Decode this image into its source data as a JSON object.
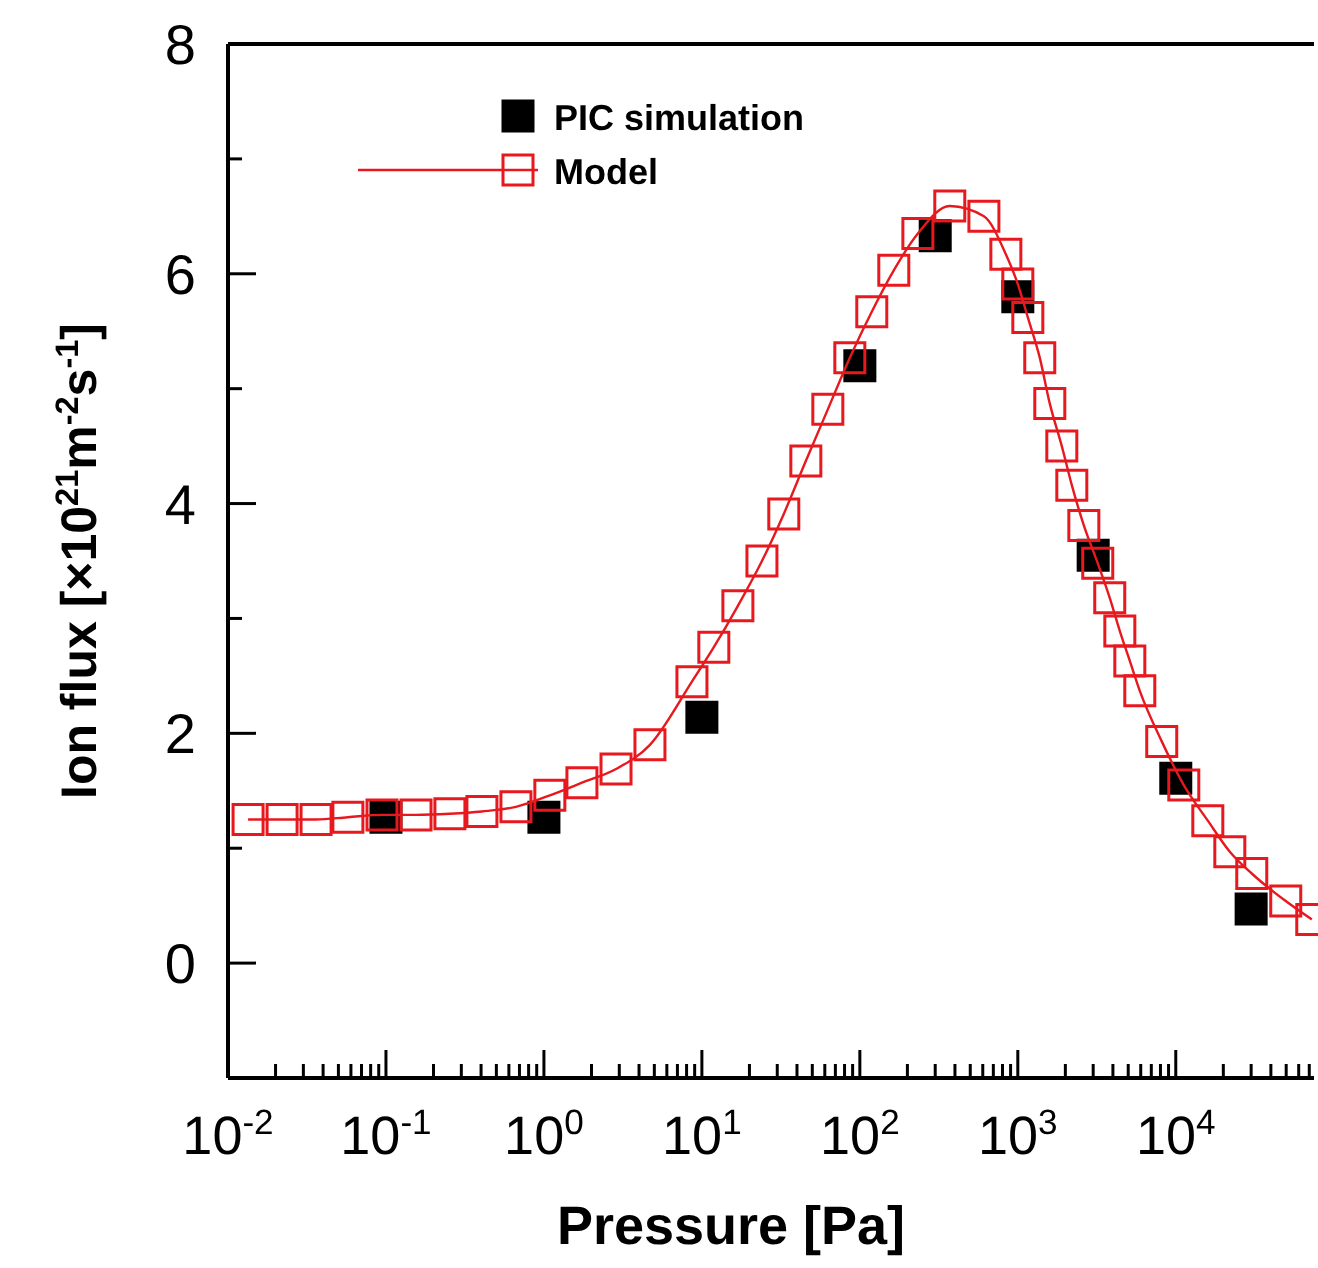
{
  "chart_data": {
    "type": "scatter",
    "xlabel": "Pressure [Pa]",
    "ylabel": "Ion flux [×10$^{21}$m$^{-2}$s$^{-1}$]",
    "log": "x",
    "xlim": [
      0.01,
      75000
    ],
    "ylim": [
      -1,
      8
    ],
    "xticks": [
      {
        "value": 0.01,
        "label": "10$^{-2}$"
      },
      {
        "value": 0.02,
        "label": null
      },
      {
        "value": 0.03,
        "label": null
      },
      {
        "value": 0.04,
        "label": null
      },
      {
        "value": 0.05,
        "label": null
      },
      {
        "value": 0.06,
        "label": null
      },
      {
        "value": 0.07,
        "label": null
      },
      {
        "value": 0.08,
        "label": null
      },
      {
        "value": 0.09,
        "label": null
      },
      {
        "value": 0.1,
        "label": "10$^{-1}$"
      },
      {
        "value": 0.2,
        "label": null
      },
      {
        "value": 0.3,
        "label": null
      },
      {
        "value": 0.4,
        "label": null
      },
      {
        "value": 0.5,
        "label": null
      },
      {
        "value": 0.6,
        "label": null
      },
      {
        "value": 0.7,
        "label": null
      },
      {
        "value": 0.8,
        "label": null
      },
      {
        "value": 0.9,
        "label": null
      },
      {
        "value": 1,
        "label": "10$^{0}$"
      },
      {
        "value": 2,
        "label": null
      },
      {
        "value": 3,
        "label": null
      },
      {
        "value": 4,
        "label": null
      },
      {
        "value": 5,
        "label": null
      },
      {
        "value": 6,
        "label": null
      },
      {
        "value": 7,
        "label": null
      },
      {
        "value": 8,
        "label": null
      },
      {
        "value": 9,
        "label": null
      },
      {
        "value": 10,
        "label": "10$^{1}$"
      },
      {
        "value": 20,
        "label": null
      },
      {
        "value": 30,
        "label": null
      },
      {
        "value": 40,
        "label": null
      },
      {
        "value": 50,
        "label": null
      },
      {
        "value": 60,
        "label": null
      },
      {
        "value": 70,
        "label": null
      },
      {
        "value": 80,
        "label": null
      },
      {
        "value": 90,
        "label": null
      },
      {
        "value": 100,
        "label": "10$^{2}$"
      },
      {
        "value": 200,
        "label": null
      },
      {
        "value": 300,
        "label": null
      },
      {
        "value": 400,
        "label": null
      },
      {
        "value": 500,
        "label": null
      },
      {
        "value": 600,
        "label": null
      },
      {
        "value": 700,
        "label": null
      },
      {
        "value": 800,
        "label": null
      },
      {
        "value": 900,
        "label": null
      },
      {
        "value": 1000,
        "label": "10$^{3}$"
      },
      {
        "value": 2000,
        "label": null
      },
      {
        "value": 3000,
        "label": null
      },
      {
        "value": 4000,
        "label": null
      },
      {
        "value": 5000,
        "label": null
      },
      {
        "value": 6000,
        "label": null
      },
      {
        "value": 7000,
        "label": null
      },
      {
        "value": 8000,
        "label": null
      },
      {
        "value": 9000,
        "label": null
      },
      {
        "value": 10000,
        "label": "10$^{4}$"
      },
      {
        "value": 20000,
        "label": null
      },
      {
        "value": 30000,
        "label": null
      },
      {
        "value": 40000,
        "label": null
      },
      {
        "value": 50000,
        "label": null
      },
      {
        "value": 60000,
        "label": null
      },
      {
        "value": 70000,
        "label": null
      }
    ],
    "yticks": [
      {
        "value": -1,
        "label": null
      },
      0,
      {
        "value": 1,
        "label": null
      },
      2,
      {
        "value": 3,
        "label": null
      },
      4,
      {
        "value": 5,
        "label": null
      },
      6,
      {
        "value": 7,
        "label": null
      },
      8
    ],
    "grid": false,
    "legend": "top left",
    "series": [
      {
        "name": "PIC simulation",
        "marker": "square",
        "color": "#000000",
        "x": [
          0.1,
          1,
          10,
          100,
          300,
          1000,
          3000,
          10000,
          30000
        ],
        "values": [
          1.27,
          1.27,
          2.14,
          5.2,
          6.33,
          5.8,
          3.55,
          1.61,
          0.47
        ]
      },
      {
        "name": "Model",
        "type": "line",
        "marker": "square",
        "line_style": "solid",
        "color": "#e8191e",
        "x": [
          0.0134,
          0.022,
          0.0361,
          0.0574,
          0.0944,
          0.155,
          0.254,
          0.405,
          0.665,
          1.09,
          1.74,
          2.86,
          4.69,
          8.65,
          11.9,
          16.9,
          24,
          33,
          45.5,
          62.7,
          86.4,
          119,
          164,
          233,
          371,
          610,
          840,
          1000,
          1157,
          1377,
          1594,
          1899,
          2197,
          2618,
          3207,
          3819,
          4424,
          5117,
          5918,
          8150,
          11240,
          15950,
          21980,
          30270,
          49670,
          72600
        ],
        "values": [
          1.25,
          1.25,
          1.25,
          1.27,
          1.29,
          1.29,
          1.3,
          1.32,
          1.36,
          1.46,
          1.57,
          1.69,
          1.9,
          2.45,
          2.75,
          3.11,
          3.5,
          3.91,
          4.37,
          4.82,
          5.27,
          5.67,
          6.03,
          6.35,
          6.59,
          6.5,
          6.17,
          5.91,
          5.62,
          5.27,
          4.87,
          4.5,
          4.16,
          3.81,
          3.48,
          3.18,
          2.89,
          2.63,
          2.37,
          1.93,
          1.55,
          1.24,
          0.97,
          0.78,
          0.54,
          0.38
        ]
      }
    ]
  }
}
